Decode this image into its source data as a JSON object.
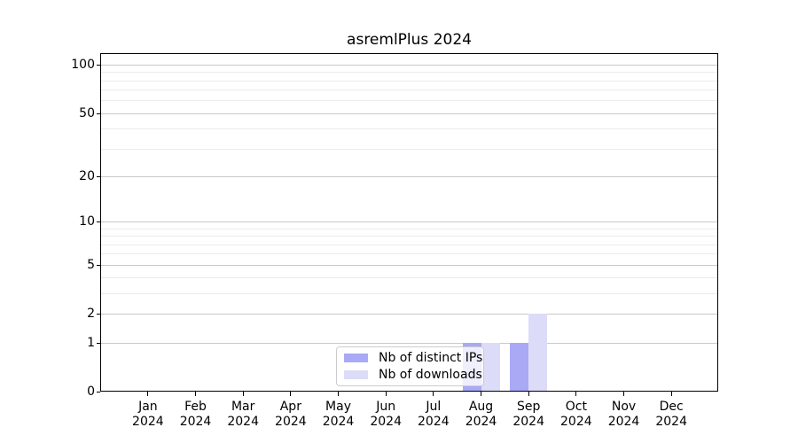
{
  "chart_data": {
    "type": "bar",
    "title": "asremlPlus 2024",
    "categories": [
      "Jan 2024",
      "Feb 2024",
      "Mar 2024",
      "Apr 2024",
      "May 2024",
      "Jun 2024",
      "Jul 2024",
      "Aug 2024",
      "Sep 2024",
      "Oct 2024",
      "Nov 2024",
      "Dec 2024"
    ],
    "series": [
      {
        "name": "Nb of distinct IPs",
        "color": "#a9a9f6",
        "values": [
          0,
          0,
          0,
          0,
          0,
          0,
          0,
          1,
          1,
          0,
          0,
          0
        ]
      },
      {
        "name": "Nb of downloads",
        "color": "#dcdcf8",
        "values": [
          0,
          0,
          0,
          0,
          0,
          0,
          0,
          1,
          2,
          0,
          0,
          0
        ]
      }
    ],
    "xlabel": "",
    "ylabel": "",
    "yscale": "log1p",
    "ylim": [
      0,
      118
    ],
    "y_major_ticks": [
      0,
      1,
      2,
      5,
      10,
      20,
      50,
      100
    ],
    "y_minor_gridlines": [
      3,
      4,
      6,
      7,
      8,
      9,
      30,
      40,
      60,
      70,
      80,
      90
    ],
    "grid": "horizontal",
    "legend_position": "inside-bottom-center"
  },
  "colors": {
    "major_grid": "#c9c9c9",
    "minor_grid": "#ececec",
    "spine": "#000000",
    "legend_border": "#cccccc"
  }
}
